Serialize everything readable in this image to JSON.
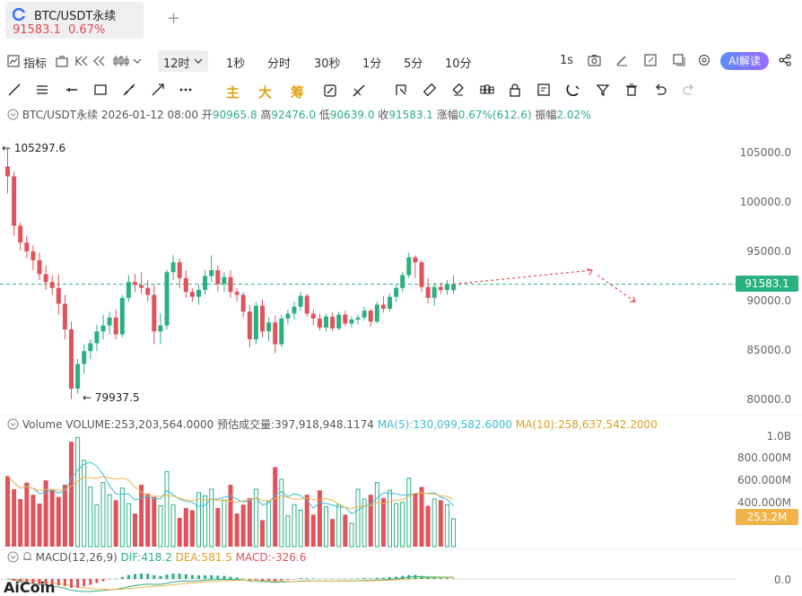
{
  "tab": {
    "title": "BTC/USDT永续",
    "price": "91583.1",
    "change": "0.67%"
  },
  "toolbar1": {
    "indicators_label": "指标",
    "period_selected": "12时",
    "periods": [
      "1秒",
      "分时",
      "30秒",
      "1分",
      "5分",
      "10分"
    ],
    "interval_label": "1s",
    "ai_label": "AI解读"
  },
  "draw_tools": {
    "main": "主",
    "big": "大",
    "chip": "筹"
  },
  "info": {
    "symbol": "BTC/USDT永续",
    "datetime": "2026-01-12 08:00",
    "open_label": "开",
    "open": "90965.8",
    "high_label": "高",
    "high": "92476.0",
    "low_label": "低",
    "low": "90639.0",
    "close_label": "收",
    "close": "91583.1",
    "change_label": "涨幅",
    "change": "0.67%(612.6)",
    "amp_label": "振幅",
    "amp": "2.02%"
  },
  "volume_info": {
    "label": "Volume",
    "volume": "VOLUME:253,203,564.0000",
    "est": "预估成交量:397,918,948.1174",
    "ma5": "MA(5):130,099,582.6000",
    "ma10": "MA(10):258,637,542.2000"
  },
  "macd_info": {
    "label": "MACD(12,26,9)",
    "dif": "DIF:418.2",
    "dea": "DEA:581.5",
    "macd": "MACD:-326.6"
  },
  "price_axis": [
    "105000.0",
    "100000.0",
    "95000.0",
    "91583.1",
    "90000.0",
    "85000.0",
    "80000.0"
  ],
  "volume_axis": [
    "1.0B",
    "800.000M",
    "600.000M",
    "400.000M",
    "253.2M"
  ],
  "macd_axis": [
    "0.0"
  ],
  "high_marker": "105297.6",
  "low_marker": "79937.5",
  "watermark": "AiCoin",
  "colors": {
    "up": "#2bb07f",
    "down": "#e0535b",
    "ma5": "#3bbfd6",
    "ma10": "#f0b34a",
    "dif": "#2bb07f",
    "dea": "#f0b34a"
  },
  "chart_data": {
    "type": "candlestick",
    "title": "BTC/USDT永续",
    "interval": "12时",
    "ylim": [
      79000,
      106500
    ],
    "candles": [
      [
        103500,
        105297,
        100800,
        102500
      ],
      [
        102500,
        103000,
        96500,
        97500
      ],
      [
        97500,
        97800,
        95000,
        95800
      ],
      [
        95800,
        96500,
        94200,
        94900
      ],
      [
        94900,
        95500,
        93000,
        94000
      ],
      [
        94000,
        94800,
        92000,
        92600
      ],
      [
        92600,
        93500,
        91000,
        91800
      ],
      [
        91800,
        92500,
        90500,
        91200
      ],
      [
        91200,
        92600,
        88500,
        89600
      ],
      [
        89600,
        90500,
        86000,
        87000
      ],
      [
        87000,
        87800,
        79937,
        81000
      ],
      [
        81000,
        84000,
        80500,
        83500
      ],
      [
        83500,
        85500,
        82500,
        84800
      ],
      [
        84800,
        86000,
        84000,
        85600
      ],
      [
        85600,
        87500,
        84800,
        86800
      ],
      [
        86800,
        88500,
        86000,
        87400
      ],
      [
        87400,
        88800,
        86500,
        88200
      ],
      [
        88200,
        89000,
        86000,
        86500
      ],
      [
        86500,
        90500,
        86200,
        90200
      ],
      [
        90200,
        92500,
        89800,
        91800
      ],
      [
        91800,
        92600,
        90800,
        91500
      ],
      [
        91500,
        92800,
        90600,
        91200
      ],
      [
        91200,
        92000,
        89800,
        90500
      ],
      [
        90500,
        91500,
        85500,
        86800
      ],
      [
        86800,
        88600,
        85500,
        87400
      ],
      [
        87400,
        93000,
        87000,
        92800
      ],
      [
        92800,
        94500,
        92000,
        93800
      ],
      [
        93800,
        94200,
        91200,
        92200
      ],
      [
        92200,
        93000,
        90200,
        90800
      ],
      [
        90800,
        91200,
        89800,
        90300
      ],
      [
        90300,
        91500,
        89500,
        91000
      ],
      [
        91000,
        93000,
        90500,
        92400
      ],
      [
        92400,
        94500,
        91800,
        93000
      ],
      [
        93000,
        93500,
        90800,
        91600
      ],
      [
        91600,
        92800,
        90800,
        92300
      ],
      [
        92300,
        93000,
        90200,
        90800
      ],
      [
        90800,
        91200,
        89800,
        90500
      ],
      [
        90500,
        90800,
        88200,
        88800
      ],
      [
        88800,
        89500,
        85200,
        86000
      ],
      [
        86000,
        89800,
        85500,
        89400
      ],
      [
        89400,
        90000,
        86200,
        86800
      ],
      [
        86800,
        88200,
        85800,
        87700
      ],
      [
        87700,
        88400,
        84600,
        85500
      ],
      [
        85500,
        88500,
        85200,
        88100
      ],
      [
        88100,
        89000,
        87500,
        88600
      ],
      [
        88600,
        89800,
        88000,
        89300
      ],
      [
        89300,
        90800,
        88900,
        90400
      ],
      [
        90400,
        90600,
        88300,
        88600
      ],
      [
        88600,
        89000,
        87400,
        88100
      ],
      [
        88100,
        88600,
        86900,
        87200
      ],
      [
        87200,
        88600,
        86800,
        88300
      ],
      [
        88300,
        88700,
        86800,
        87100
      ],
      [
        87100,
        88800,
        86900,
        88500
      ],
      [
        88500,
        88900,
        87300,
        87600
      ],
      [
        87600,
        88300,
        87200,
        88000
      ],
      [
        88000,
        88500,
        87500,
        88200
      ],
      [
        88200,
        89300,
        87900,
        88900
      ],
      [
        88900,
        89100,
        87300,
        87800
      ],
      [
        87800,
        89800,
        87600,
        89500
      ],
      [
        89500,
        90400,
        88700,
        89100
      ],
      [
        89100,
        90600,
        88800,
        90300
      ],
      [
        90300,
        91500,
        89800,
        91200
      ],
      [
        91200,
        92800,
        90800,
        92500
      ],
      [
        92500,
        94800,
        92200,
        94300
      ],
      [
        94300,
        94500,
        92200,
        93800
      ],
      [
        93800,
        94000,
        90800,
        91300
      ],
      [
        91300,
        92200,
        89600,
        90200
      ],
      [
        90200,
        91700,
        89400,
        91300
      ],
      [
        91300,
        91800,
        90600,
        91000
      ],
      [
        91000,
        92000,
        90500,
        91600
      ],
      [
        90965.8,
        92476,
        90639,
        91583.1
      ]
    ],
    "volume": [
      640,
      520,
      430,
      580,
      470,
      390,
      600,
      520,
      450,
      560,
      950,
      990,
      780,
      540,
      380,
      580,
      470,
      420,
      530,
      390,
      300,
      560,
      480,
      450,
      370,
      680,
      380,
      260,
      350,
      330,
      490,
      460,
      520,
      350,
      420,
      560,
      300,
      380,
      440,
      520,
      240,
      410,
      720,
      610,
      280,
      380,
      330,
      470,
      290,
      510,
      360,
      250,
      380,
      290,
      210,
      520,
      430,
      470,
      580,
      440,
      510,
      390,
      400,
      620,
      480,
      540,
      370,
      430,
      420,
      380,
      253
    ]
  }
}
